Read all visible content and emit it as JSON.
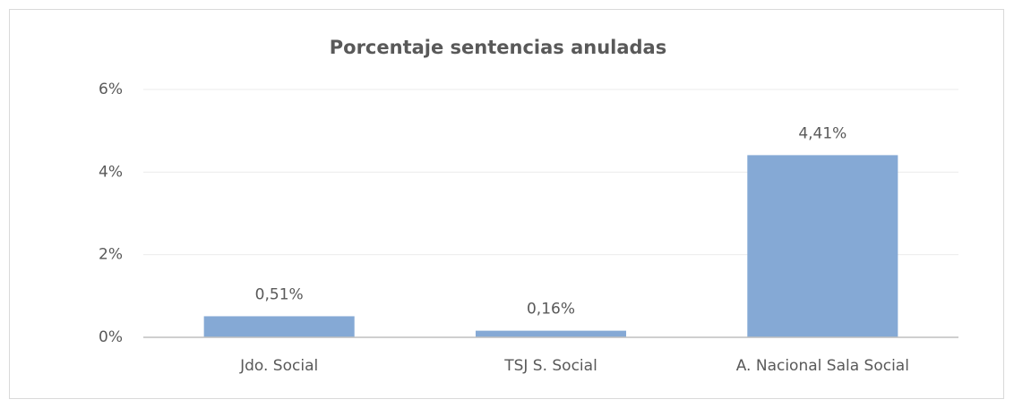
{
  "chart_data": {
    "type": "bar",
    "title": "Porcentaje sentencias anuladas",
    "categories": [
      "Jdo. Social",
      "TSJ S. Social",
      "A. Nacional  Sala Social"
    ],
    "values": [
      0.51,
      0.16,
      4.41
    ],
    "value_labels": [
      "0,51%",
      "0,16%",
      "4,41%"
    ],
    "color": "#85a9d5",
    "ylim": [
      0,
      6
    ],
    "yticks": [
      {
        "value": 0,
        "label": "0%"
      },
      {
        "value": 2,
        "label": "2%"
      },
      {
        "value": 4,
        "label": "4%"
      },
      {
        "value": 6,
        "label": "6%"
      }
    ],
    "grid": true
  }
}
